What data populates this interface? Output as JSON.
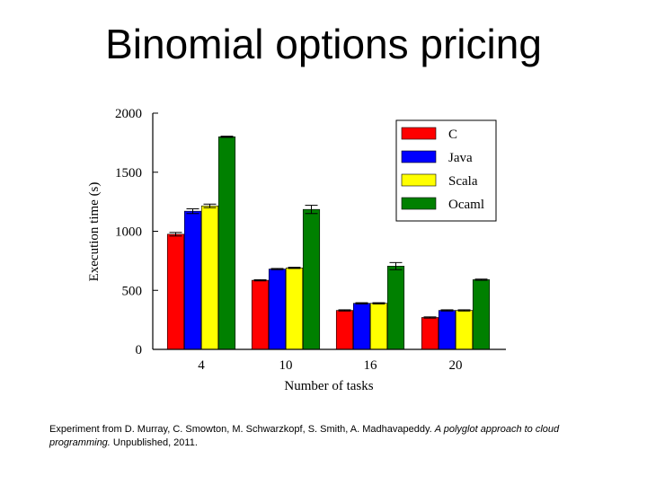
{
  "slide": {
    "title": "Binomial options pricing",
    "caption": {
      "prefix": "Experiment from D. Murray, C. Smowton, M. Schwarzkopf, S. Smith, A. Madhavapeddy. ",
      "italic": "A polyglot approach to cloud programming.",
      "suffix": " Unpublished, 2011."
    }
  },
  "chart_data": {
    "type": "bar",
    "title": "",
    "xlabel": "Number of tasks",
    "ylabel": "Execution time (s)",
    "ylim": [
      0,
      2000
    ],
    "yticks": [
      0,
      500,
      1000,
      1500,
      2000
    ],
    "categories": [
      "4",
      "10",
      "16",
      "20"
    ],
    "legend_position": "top-right",
    "series": [
      {
        "name": "C",
        "color": "#ff0000",
        "values": [
          975,
          585,
          330,
          270
        ],
        "errors": [
          15,
          5,
          5,
          5
        ]
      },
      {
        "name": "Java",
        "color": "#0000ff",
        "values": [
          1170,
          680,
          390,
          330
        ],
        "errors": [
          20,
          5,
          5,
          5
        ]
      },
      {
        "name": "Scala",
        "color": "#ffff00",
        "values": [
          1215,
          690,
          390,
          330
        ],
        "errors": [
          15,
          5,
          5,
          5
        ]
      },
      {
        "name": "Ocaml",
        "color": "#008000",
        "values": [
          1800,
          1185,
          705,
          590
        ],
        "errors": [
          5,
          35,
          30,
          5
        ]
      }
    ]
  }
}
